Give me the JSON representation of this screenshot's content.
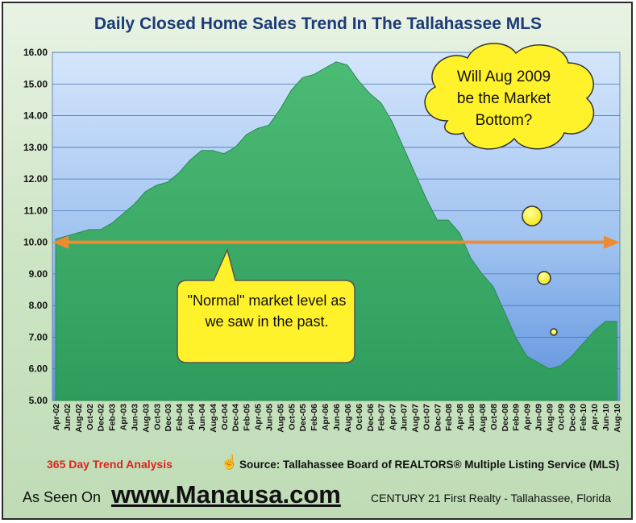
{
  "chart_data": {
    "type": "area",
    "title": "Daily Closed Home Sales Trend In The Tallahassee MLS",
    "xlabel": "",
    "ylabel": "",
    "ylim": [
      5,
      16
    ],
    "yticks": [
      "5.00",
      "6.00",
      "7.00",
      "8.00",
      "9.00",
      "10.00",
      "11.00",
      "12.00",
      "13.00",
      "14.00",
      "15.00",
      "16.00"
    ],
    "x_tick_labels": [
      "Apr-02",
      "Jun-02",
      "Aug-02",
      "Oct-02",
      "Dec-02",
      "Feb-03",
      "Apr-03",
      "Jun-03",
      "Aug-03",
      "Oct-03",
      "Dec-03",
      "Feb-04",
      "Apr-04",
      "Jun-04",
      "Aug-04",
      "Oct-04",
      "Dec-04",
      "Feb-05",
      "Apr-05",
      "Jun-05",
      "Aug-05",
      "Oct-05",
      "Dec-05",
      "Feb-06",
      "Apr-06",
      "Jun-06",
      "Aug-06",
      "Oct-06",
      "Dec-06",
      "Feb-07",
      "Apr-07",
      "Jun-07",
      "Aug-07",
      "Oct-07",
      "Dec-07",
      "Feb-08",
      "Apr-08",
      "Jun-08",
      "Aug-08",
      "Oct-08",
      "Dec-08",
      "Feb-09",
      "Apr-09",
      "Jun-09",
      "Aug-09",
      "Oct-09",
      "Dec-09",
      "Feb-10",
      "Apr-10",
      "Jun-10",
      "Aug-10"
    ],
    "series": [
      {
        "values": [
          10.1,
          10.2,
          10.3,
          10.4,
          10.4,
          10.6,
          10.9,
          11.2,
          11.6,
          11.8,
          11.9,
          12.2,
          12.6,
          12.9,
          12.9,
          12.8,
          13.0,
          13.4,
          13.6,
          13.7,
          14.2,
          14.8,
          15.2,
          15.3,
          15.5,
          15.7,
          15.6,
          15.1,
          14.7,
          14.4,
          13.8,
          13.0,
          12.2,
          11.4,
          10.7,
          10.7,
          10.3,
          9.5,
          9.0,
          8.6,
          7.8,
          7.0,
          6.4,
          6.2,
          6.0,
          6.1,
          6.4,
          6.8,
          7.2,
          7.5,
          7.5
        ]
      }
    ],
    "reference_line": {
      "value": 10.0
    },
    "annotations": [
      {
        "text": "Will Aug 2009 be the Market Bottom?"
      },
      {
        "text": "\"Normal\" market level as we saw in the past."
      }
    ],
    "grid": true,
    "colors": {
      "plot_background": "#78a8e6",
      "area": "#3fae6a",
      "reference_line": "#f08a30",
      "callout": "#fff22a",
      "title": "#1c3a78"
    }
  },
  "footer": {
    "trend_label": "365 Day Trend Analysis",
    "hand_icon": "pointing-hand-icon",
    "source": "Source: Tallahassee Board of REALTORS® Multiple Listing Service (MLS)",
    "seen_on": "As Seen On",
    "url": "www.Manausa.com",
    "brokerage": "CENTURY 21 First Realty - Tallahassee, Florida"
  }
}
